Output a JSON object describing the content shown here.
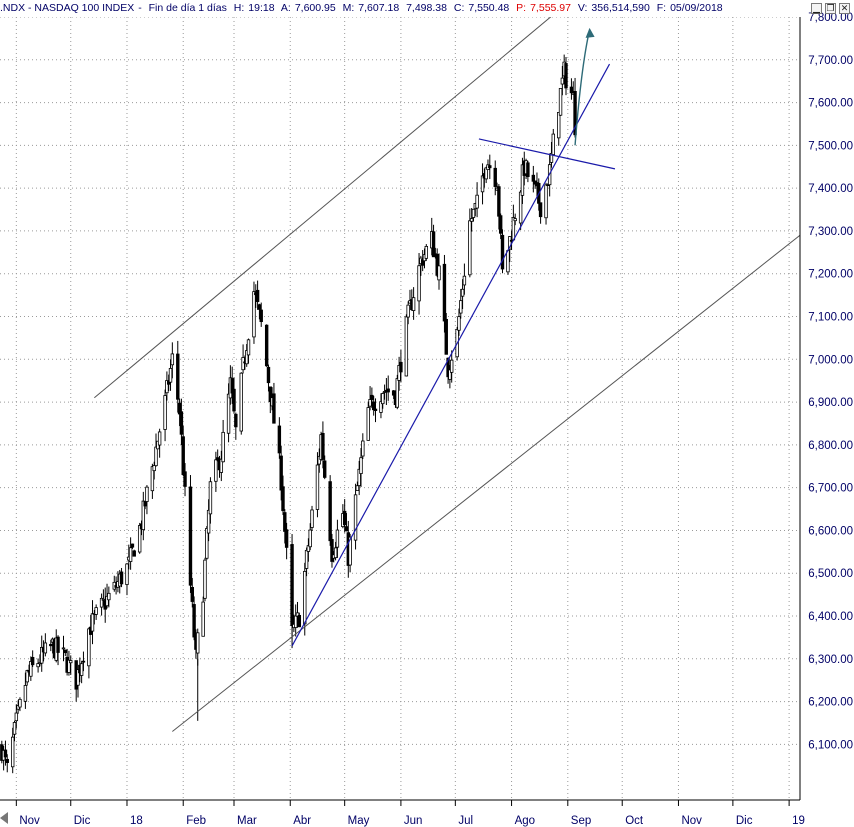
{
  "header": {
    "symbol": ".NDX - NASDAQ 100 INDEX",
    "period": "Fin de día 1 días",
    "high_label": "H:",
    "high": "19:18",
    "open_label": "A:",
    "open": "7,600.95",
    "max_label": "M:",
    "max": "7,607.18",
    "low_value": "7,498.38",
    "close_label": "C:",
    "close": "7,550.48",
    "last_label": "P:",
    "last": "7,555.97",
    "volume_label": "V:",
    "volume": "356,514,590",
    "date_label": "F:",
    "date": "05/09/2018"
  },
  "window_controls": {
    "minimize": "▁",
    "restore": "❐",
    "close": "✕"
  },
  "colors": {
    "candle": "#000000",
    "grid": "#9a9a9a",
    "channel": "#555555",
    "trend": "#1a1aaa",
    "projection": "#2e6b78",
    "axis_text": "#000066"
  },
  "chart_data": {
    "type": "candlestick",
    "y_ticks": [
      "6,100.00",
      "6,200.00",
      "6,300.00",
      "6,400.00",
      "6,500.00",
      "6,600.00",
      "6,700.00",
      "6,800.00",
      "6,900.00",
      "7,000.00",
      "7,100.00",
      "7,200.00",
      "7,300.00",
      "7,400.00",
      "7,500.00",
      "7,600.00",
      "7,700.00",
      "7,800.00"
    ],
    "y_tick_values": [
      6100,
      6200,
      6300,
      6400,
      6500,
      6600,
      6700,
      6800,
      6900,
      7000,
      7100,
      7200,
      7300,
      7400,
      7500,
      7600,
      7700,
      7800
    ],
    "ylim": [
      5970,
      7800
    ],
    "xlim": [
      "2017-10-23",
      "2019-01-07"
    ],
    "x_ticks": [
      "Nov",
      "Dic",
      "18",
      "Feb",
      "Mar",
      "Abr",
      "May",
      "Jun",
      "Jul",
      "Ago",
      "Sep",
      "Oct",
      "Nov",
      "Dic",
      "19"
    ],
    "x_tick_dates": [
      "2017-11-01",
      "2017-12-01",
      "2018-01-01",
      "2018-02-01",
      "2018-03-01",
      "2018-04-01",
      "2018-05-01",
      "2018-06-01",
      "2018-07-01",
      "2018-08-01",
      "2018-09-01",
      "2018-10-01",
      "2018-11-01",
      "2018-12-01",
      "2019-01-01"
    ],
    "grid": true,
    "price_path": [
      [
        "2017-10-24",
        6090
      ],
      [
        "2017-10-27",
        6040
      ],
      [
        "2017-11-01",
        6150
      ],
      [
        "2017-11-07",
        6260
      ],
      [
        "2017-11-14",
        6300
      ],
      [
        "2017-11-21",
        6330
      ],
      [
        "2017-11-28",
        6300
      ],
      [
        "2017-12-04",
        6250
      ],
      [
        "2017-12-11",
        6370
      ],
      [
        "2017-12-18",
        6420
      ],
      [
        "2017-12-26",
        6470
      ],
      [
        "2018-01-02",
        6520
      ],
      [
        "2018-01-09",
        6620
      ],
      [
        "2018-01-16",
        6770
      ],
      [
        "2018-01-22",
        6900
      ],
      [
        "2018-01-26",
        7000
      ],
      [
        "2018-01-30",
        6880
      ],
      [
        "2018-02-02",
        6680
      ],
      [
        "2018-02-05",
        6470
      ],
      [
        "2018-02-08",
        6300
      ],
      [
        "2018-02-12",
        6460
      ],
      [
        "2018-02-16",
        6700
      ],
      [
        "2018-02-22",
        6780
      ],
      [
        "2018-02-27",
        6940
      ],
      [
        "2018-03-02",
        6830
      ],
      [
        "2018-03-06",
        6980
      ],
      [
        "2018-03-12",
        7160
      ],
      [
        "2018-03-16",
        7080
      ],
      [
        "2018-03-22",
        6890
      ],
      [
        "2018-03-27",
        6720
      ],
      [
        "2018-04-02",
        6360
      ],
      [
        "2018-04-06",
        6400
      ],
      [
        "2018-04-12",
        6600
      ],
      [
        "2018-04-18",
        6820
      ],
      [
        "2018-04-24",
        6550
      ],
      [
        "2018-04-30",
        6640
      ],
      [
        "2018-05-03",
        6540
      ],
      [
        "2018-05-08",
        6700
      ],
      [
        "2018-05-14",
        6880
      ],
      [
        "2018-05-22",
        6930
      ],
      [
        "2018-05-29",
        6920
      ],
      [
        "2018-06-05",
        7100
      ],
      [
        "2018-06-12",
        7230
      ],
      [
        "2018-06-18",
        7280
      ],
      [
        "2018-06-22",
        7200
      ],
      [
        "2018-06-27",
        6980
      ],
      [
        "2018-07-02",
        7060
      ],
      [
        "2018-07-09",
        7320
      ],
      [
        "2018-07-13",
        7360
      ],
      [
        "2018-07-18",
        7470
      ],
      [
        "2018-07-24",
        7420
      ],
      [
        "2018-07-27",
        7200
      ],
      [
        "2018-08-01",
        7300
      ],
      [
        "2018-08-08",
        7450
      ],
      [
        "2018-08-13",
        7400
      ],
      [
        "2018-08-17",
        7360
      ],
      [
        "2018-08-22",
        7440
      ],
      [
        "2018-08-27",
        7600
      ],
      [
        "2018-08-30",
        7670
      ],
      [
        "2018-09-04",
        7610
      ],
      [
        "2018-09-05",
        7550
      ]
    ],
    "annotations": {
      "channel_upper": [
        [
          "2017-12-14",
          6910
        ],
        [
          "2018-08-31",
          7830
        ]
      ],
      "channel_lower": [
        [
          "2018-01-26",
          6130
        ],
        [
          "2019-01-07",
          7290
        ]
      ],
      "support_trendline": [
        [
          "2018-04-02",
          6330
        ],
        [
          "2018-09-24",
          7690
        ]
      ],
      "resistance_line": [
        [
          "2018-07-14",
          7515
        ],
        [
          "2018-09-27",
          7445
        ]
      ],
      "projection_arrow": [
        [
          "2018-09-05",
          7500
        ],
        [
          "2018-09-13",
          7770
        ]
      ]
    }
  }
}
